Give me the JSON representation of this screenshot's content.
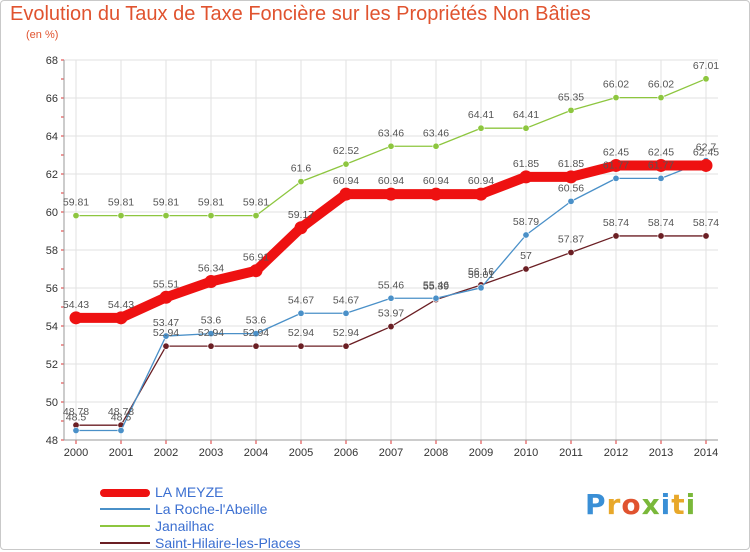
{
  "title": "Evolution du Taux de Taxe Foncière sur les Propriétés Non Bâties",
  "subtitle": "(en %)",
  "logo": {
    "text": "Proxiti",
    "colors": [
      "#3a8fd6",
      "#e8a82a",
      "#e0532f",
      "#7ab83a",
      "#3a8fd6",
      "#e8a82a",
      "#7ab83a"
    ]
  },
  "chart_data": {
    "type": "line",
    "title": "Evolution du Taux de Taxe Foncière sur les Propriétés Non Bâties",
    "ylabel": "(en %)",
    "xlabel": "",
    "categories": [
      "2000",
      "2001",
      "2002",
      "2003",
      "2004",
      "2005",
      "2006",
      "2007",
      "2008",
      "2009",
      "2010",
      "2011",
      "2012",
      "2013",
      "2014"
    ],
    "ylim": [
      48,
      68
    ],
    "yticks": [
      "48",
      "50",
      "52",
      "54",
      "56",
      "58",
      "60",
      "62",
      "64",
      "66",
      "68"
    ],
    "grid": true,
    "legend": "bottom-left",
    "series": [
      {
        "name": "LA MEYZE",
        "color": "#ee1111",
        "emphasis": true,
        "values": [
          54.43,
          54.43,
          55.51,
          56.34,
          56.91,
          59.17,
          60.94,
          60.94,
          60.94,
          60.94,
          61.85,
          61.85,
          62.45,
          62.45,
          62.45
        ],
        "labels": [
          "54.43",
          "54.43",
          "55.51",
          "56.34",
          "56.91",
          "59.17",
          "60.94",
          "60.94",
          "60.94",
          "60.94",
          "61.85",
          "61.85",
          "62.45",
          "62.45",
          "62.45"
        ]
      },
      {
        "name": "La Roche-l'Abeille",
        "color": "#4a90c8",
        "emphasis": false,
        "values": [
          48.5,
          48.5,
          53.47,
          53.6,
          53.6,
          54.67,
          54.67,
          55.46,
          55.46,
          56.01,
          58.79,
          60.56,
          61.77,
          61.77,
          62.7
        ],
        "labels": [
          "48.5",
          "48.5",
          "53.47",
          "53.6",
          "53.6",
          "54.67",
          "54.67",
          "55.46",
          "55.46",
          "56.01",
          "58.79",
          "60.56",
          "61.77",
          "61.77",
          "62.7"
        ]
      },
      {
        "name": "Janailhac",
        "color": "#8dc63f",
        "emphasis": false,
        "values": [
          59.81,
          59.81,
          59.81,
          59.81,
          59.81,
          61.6,
          62.52,
          63.46,
          63.46,
          64.41,
          64.41,
          65.35,
          66.02,
          66.02,
          67.01
        ],
        "labels": [
          "59.81",
          "59.81",
          "59.81",
          "59.81",
          "59.81",
          "61.6",
          "62.52",
          "63.46",
          "63.46",
          "64.41",
          "64.41",
          "65.35",
          "66.02",
          "66.02",
          "67.01"
        ]
      },
      {
        "name": "Saint-Hilaire-les-Places",
        "color": "#6b1f24",
        "emphasis": false,
        "values": [
          48.78,
          48.78,
          52.94,
          52.94,
          52.94,
          52.94,
          52.94,
          53.97,
          55.39,
          56.16,
          57,
          57.87,
          58.74,
          58.74,
          58.74
        ],
        "labels": [
          "48.78",
          "48.78",
          "52.94",
          "52.94",
          "52.94",
          "52.94",
          "52.94",
          "53.97",
          "55.39",
          "56.16",
          "57",
          "57.87",
          "58.74",
          "58.74",
          "58.74"
        ]
      }
    ]
  }
}
